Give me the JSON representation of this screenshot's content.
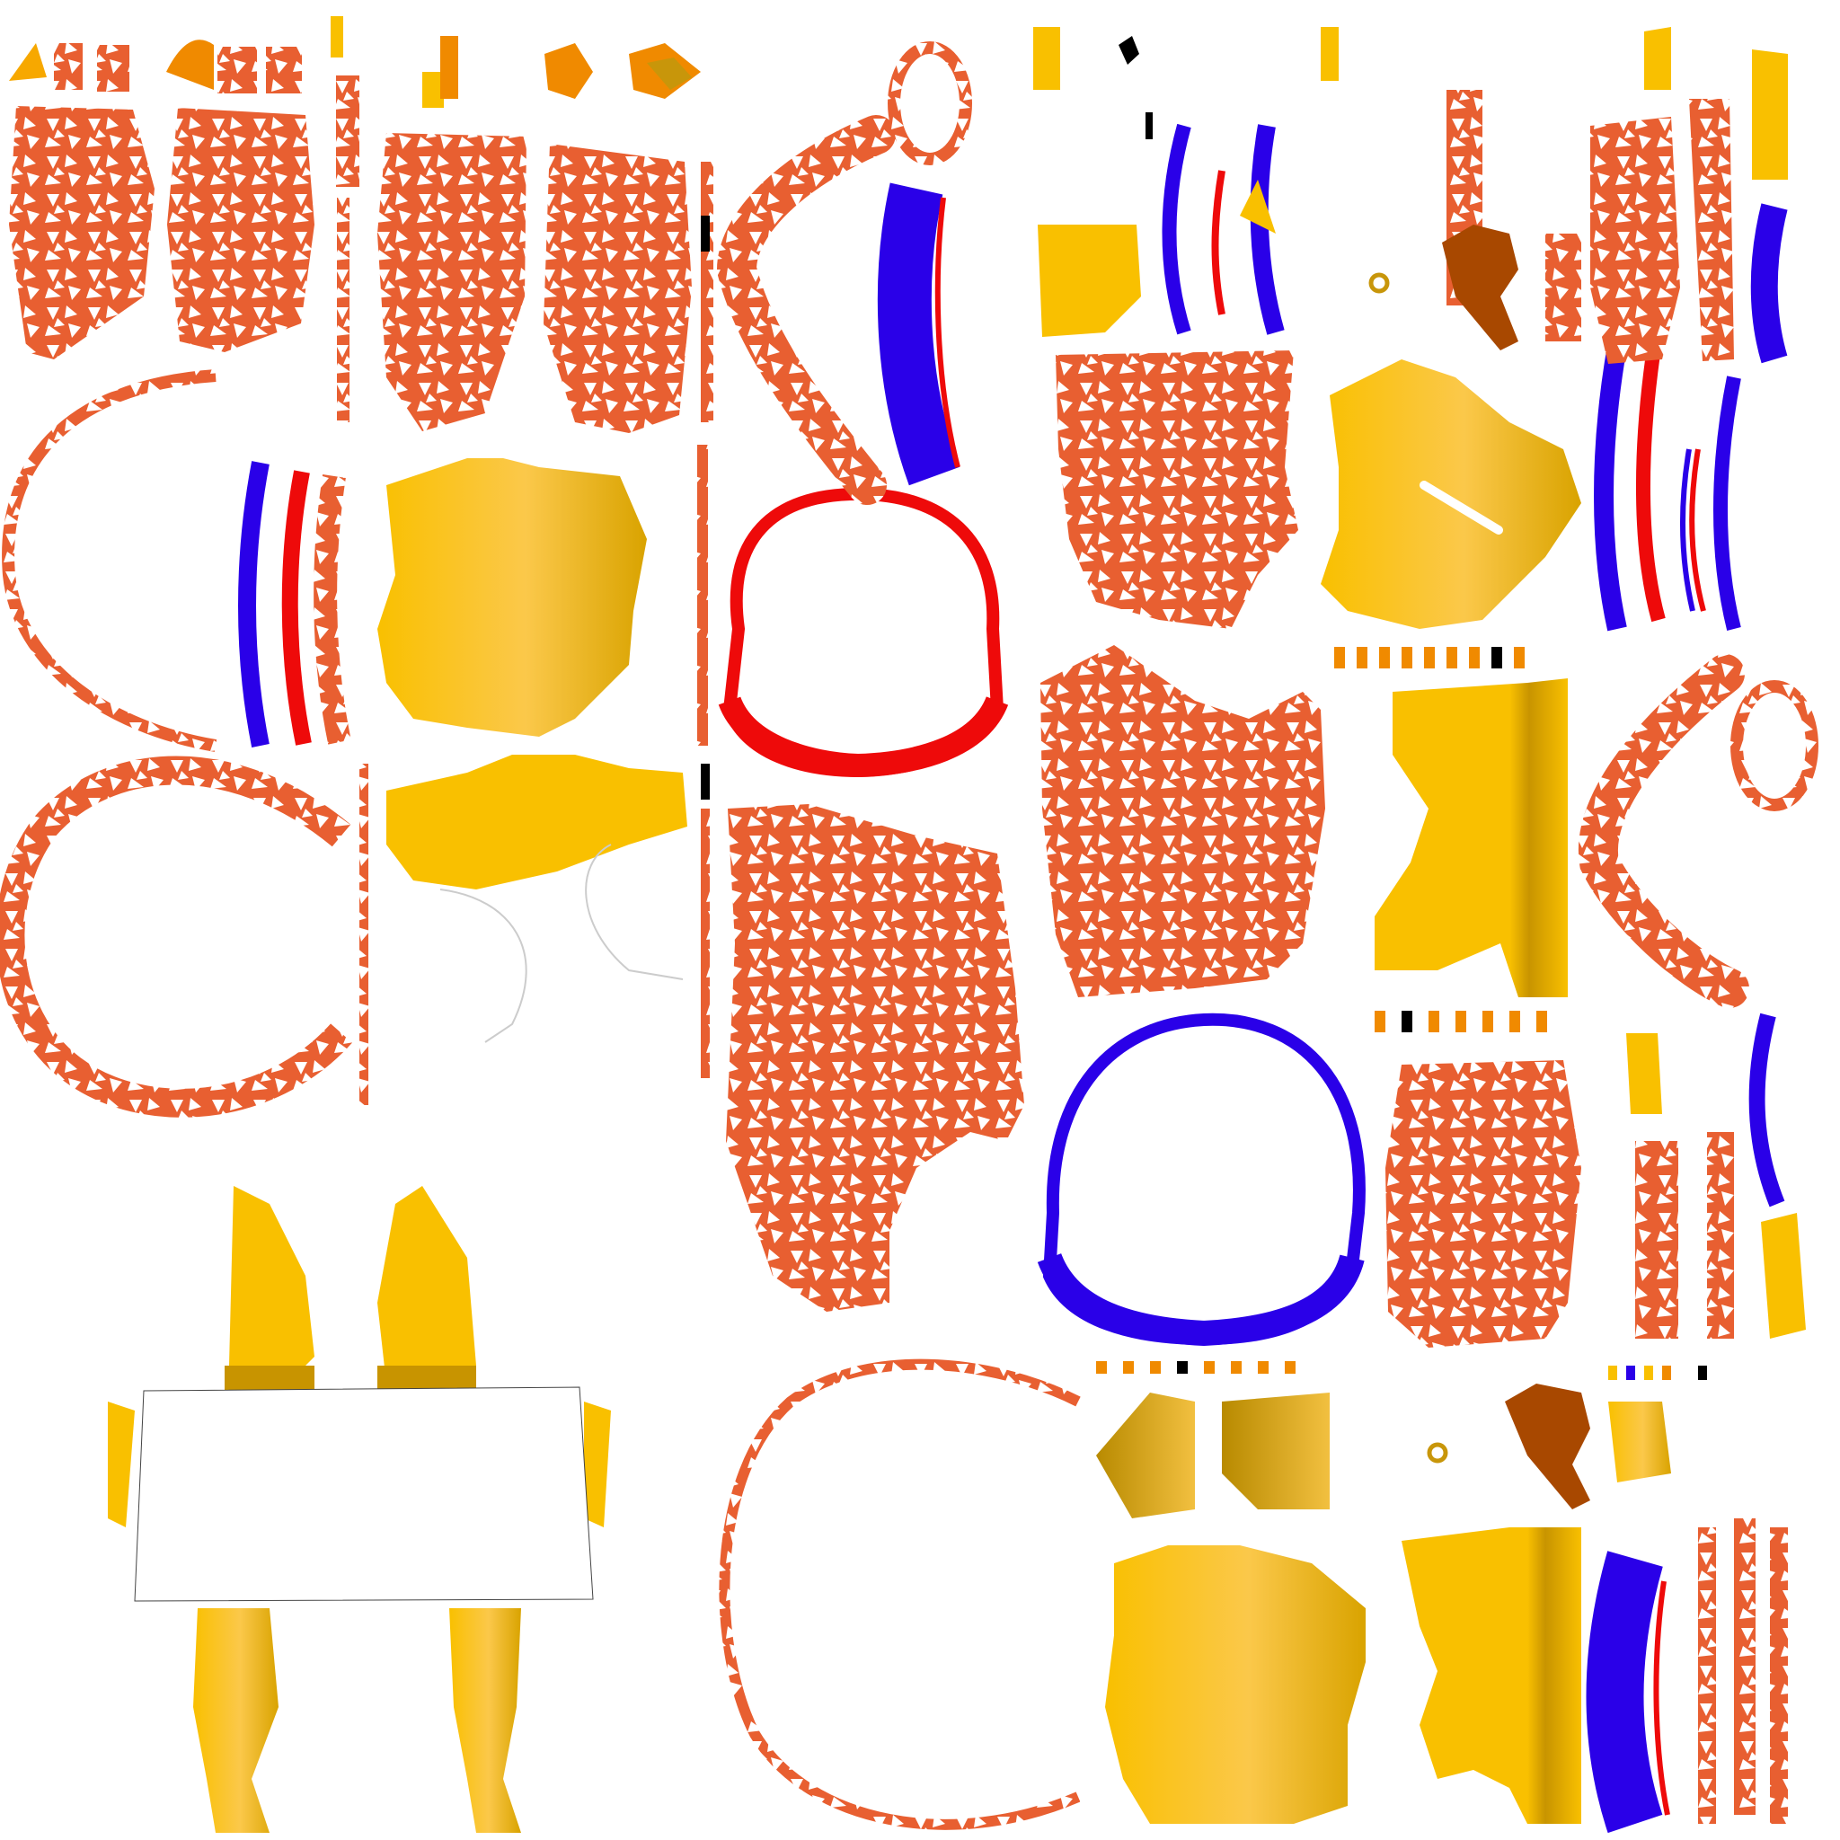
{
  "texture_atlas": {
    "description_visible_text": "",
    "colors": {
      "background": "#ffffff",
      "pattern_orange": "#e85f31",
      "triangle_white": "#ffffff",
      "yellow": "#f9c000",
      "yellow_light": "#fbc84a",
      "yellow_dark": "#c89400",
      "mustard": "#c8960a",
      "brown": "#a84800",
      "blue": "#2a00e8",
      "red": "#ee0a0a",
      "black": "#000000",
      "amber": "#f08a00"
    }
  }
}
